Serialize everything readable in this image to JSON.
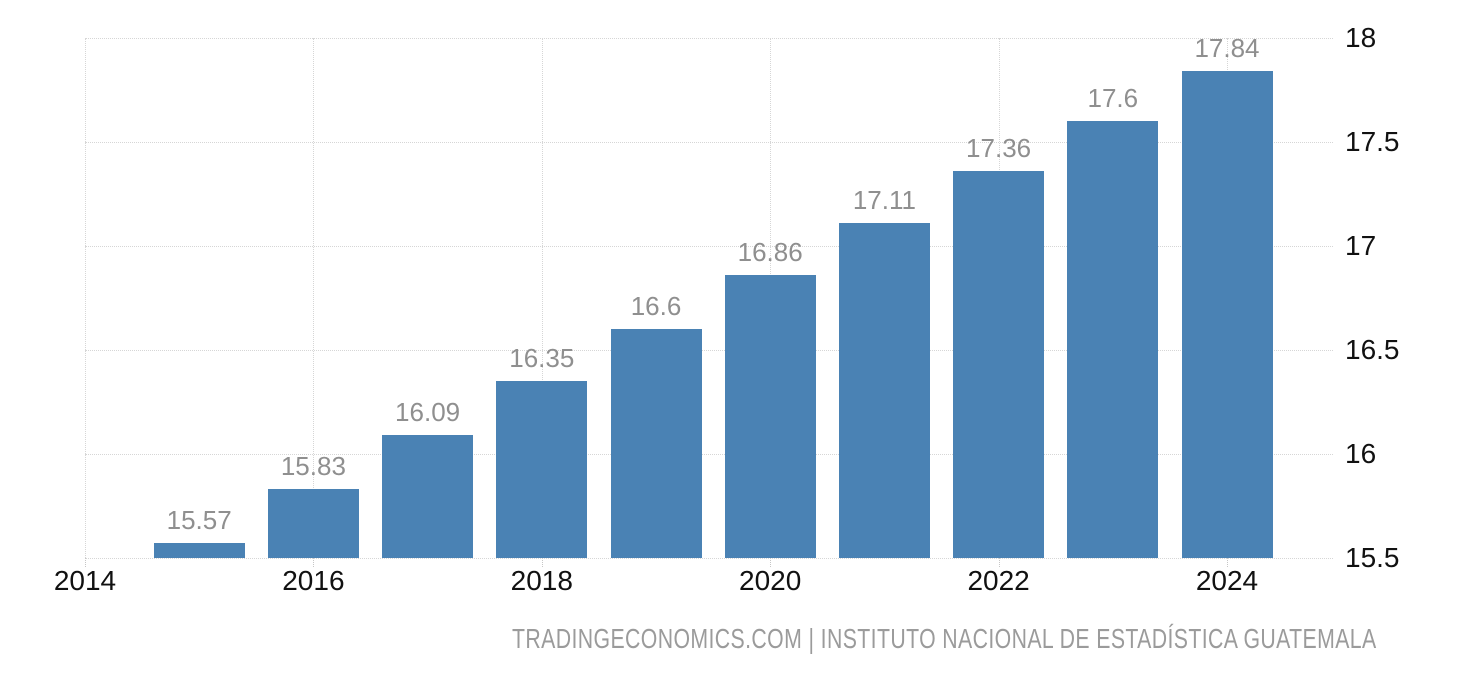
{
  "chart_data": {
    "type": "bar",
    "title": "",
    "categories": [
      2015,
      2016,
      2017,
      2018,
      2019,
      2020,
      2021,
      2022,
      2023,
      2024
    ],
    "values": [
      15.57,
      15.83,
      16.09,
      16.35,
      16.6,
      16.86,
      17.11,
      17.36,
      17.6,
      17.84
    ],
    "value_labels": [
      "15.57",
      "15.83",
      "16.09",
      "16.35",
      "16.6",
      "16.86",
      "17.11",
      "17.36",
      "17.6",
      "17.84"
    ],
    "x_ticks": [
      {
        "year": 2014,
        "label": "2014"
      },
      {
        "year": 2016,
        "label": "2016"
      },
      {
        "year": 2018,
        "label": "2018"
      },
      {
        "year": 2020,
        "label": "2020"
      },
      {
        "year": 2022,
        "label": "2022"
      },
      {
        "year": 2024,
        "label": "2024"
      }
    ],
    "y_ticks": [
      {
        "value": 15.5,
        "label": "15.5"
      },
      {
        "value": 16,
        "label": "16"
      },
      {
        "value": 16.5,
        "label": "16.5"
      },
      {
        "value": 17,
        "label": "17"
      },
      {
        "value": 17.5,
        "label": "17.5"
      },
      {
        "value": 18,
        "label": "18"
      }
    ],
    "ylim": [
      15.5,
      18
    ],
    "xlim": [
      2014,
      2024.93
    ],
    "y_axis_side": "right",
    "grid": true,
    "grid_style": "dotted",
    "legend": false,
    "xlabel": "",
    "ylabel": "",
    "colors": {
      "bar": "#4a82b4",
      "grid": "#d6d6d6",
      "tick": "#c6c6c6",
      "value_label": "#8f8f8f",
      "axis_label": "#111111",
      "footer": "#9b9b9b",
      "background": "#ffffff"
    }
  },
  "footer": {
    "text": "TRADINGECONOMICS.COM | INSTITUTO NACIONAL DE ESTADÍSTICA GUATEMALA"
  }
}
